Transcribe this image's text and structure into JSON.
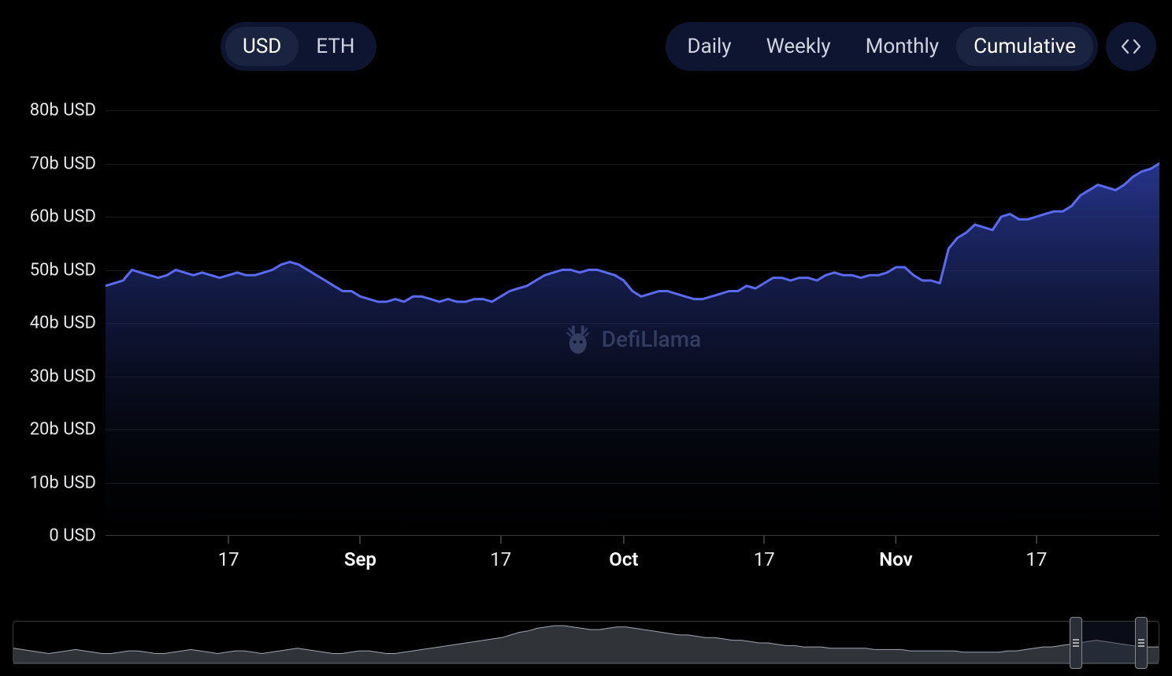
{
  "currency_toggle": {
    "options": [
      "USD",
      "ETH"
    ],
    "active_index": 0
  },
  "interval_toggle": {
    "options": [
      "Daily",
      "Weekly",
      "Monthly",
      "Cumulative"
    ],
    "active_index": 3
  },
  "watermark": "DefiLlama",
  "chart": {
    "type": "area",
    "line_color": "#5a6af0",
    "line_width": 3,
    "fill_top_color": "#2a3a9a",
    "fill_bottom_color": "#0a0f2000",
    "background_color": "#000000",
    "grid_color": "#1a1a1a",
    "axis_text_color": "#e8e8ea",
    "axis_font_size": 22,
    "ylim": [
      0,
      80
    ],
    "y_unit_suffix": "b USD",
    "yticks": [
      0,
      10,
      20,
      30,
      40,
      50,
      60,
      70,
      80
    ],
    "ytick_labels": [
      "0 USD",
      "10b USD",
      "20b USD",
      "30b USD",
      "40b USD",
      "50b USD",
      "60b USD",
      "70b USD",
      "80b USD"
    ],
    "x_count": 121,
    "xticks": [
      {
        "i": 14,
        "label": "17",
        "bold": false
      },
      {
        "i": 29,
        "label": "Sep",
        "bold": true
      },
      {
        "i": 45,
        "label": "17",
        "bold": false
      },
      {
        "i": 59,
        "label": "Oct",
        "bold": true
      },
      {
        "i": 75,
        "label": "17",
        "bold": false
      },
      {
        "i": 90,
        "label": "Nov",
        "bold": true
      },
      {
        "i": 106,
        "label": "17",
        "bold": false
      }
    ],
    "values": [
      47,
      47.5,
      48,
      50,
      49.5,
      49,
      48.5,
      49,
      50,
      49.5,
      49,
      49.5,
      49,
      48.5,
      49,
      49.5,
      49,
      49,
      49.5,
      50,
      51,
      51.5,
      51,
      50,
      49,
      48,
      47,
      46,
      46,
      45,
      44.5,
      44,
      44,
      44.5,
      44,
      45,
      45,
      44.5,
      44,
      44.5,
      44,
      44,
      44.5,
      44.5,
      44,
      45,
      46,
      46.5,
      47,
      48,
      49,
      49.5,
      50,
      50,
      49.5,
      50,
      50,
      49.5,
      49,
      48,
      46,
      45,
      45.5,
      46,
      46,
      45.5,
      45,
      44.5,
      44.5,
      45,
      45.5,
      46,
      46,
      47,
      46.5,
      47.5,
      48.5,
      48.5,
      48,
      48.5,
      48.5,
      48,
      49,
      49.5,
      49,
      49,
      48.5,
      49,
      49,
      49.5,
      50.5,
      50.5,
      49,
      48,
      48,
      47.5,
      54,
      56,
      57,
      58.5,
      58,
      57.5,
      60,
      60.5,
      59.5,
      59.5,
      60,
      60.5,
      61,
      61,
      62,
      64,
      65,
      66,
      65.5,
      65,
      66,
      67.5,
      68.5,
      69,
      70
    ]
  },
  "brush": {
    "mini_values": [
      12,
      11,
      10,
      9,
      8,
      9,
      10,
      11,
      10,
      9,
      8,
      8,
      9,
      10,
      10,
      9,
      8,
      8,
      9,
      10,
      11,
      10,
      9,
      8,
      9,
      10,
      10,
      9,
      8,
      9,
      10,
      11,
      12,
      11,
      10,
      9,
      8,
      8,
      9,
      10,
      10,
      9,
      8,
      8,
      9,
      10,
      11,
      12,
      13,
      14,
      15,
      16,
      17,
      18,
      19,
      20,
      22,
      24,
      25,
      27,
      28,
      29,
      29,
      28,
      27,
      26,
      26,
      27,
      28,
      28,
      27,
      26,
      25,
      24,
      23,
      22,
      22,
      21,
      20,
      20,
      19,
      18,
      18,
      17,
      16,
      16,
      15,
      14,
      14,
      13,
      13,
      13,
      12,
      12,
      12,
      12,
      12,
      11,
      11,
      11,
      11,
      10,
      10,
      10,
      10,
      10,
      10,
      9,
      9,
      9,
      9,
      9,
      10,
      10,
      11,
      12,
      13,
      13,
      14,
      15,
      16,
      17,
      18,
      17,
      16,
      15,
      14,
      13,
      13,
      13
    ],
    "mini_max": 32,
    "selection_start_pct": 92.8,
    "selection_end_pct": 98.5,
    "fill_color": "#606570",
    "stroke_color": "#a0a5b0"
  }
}
